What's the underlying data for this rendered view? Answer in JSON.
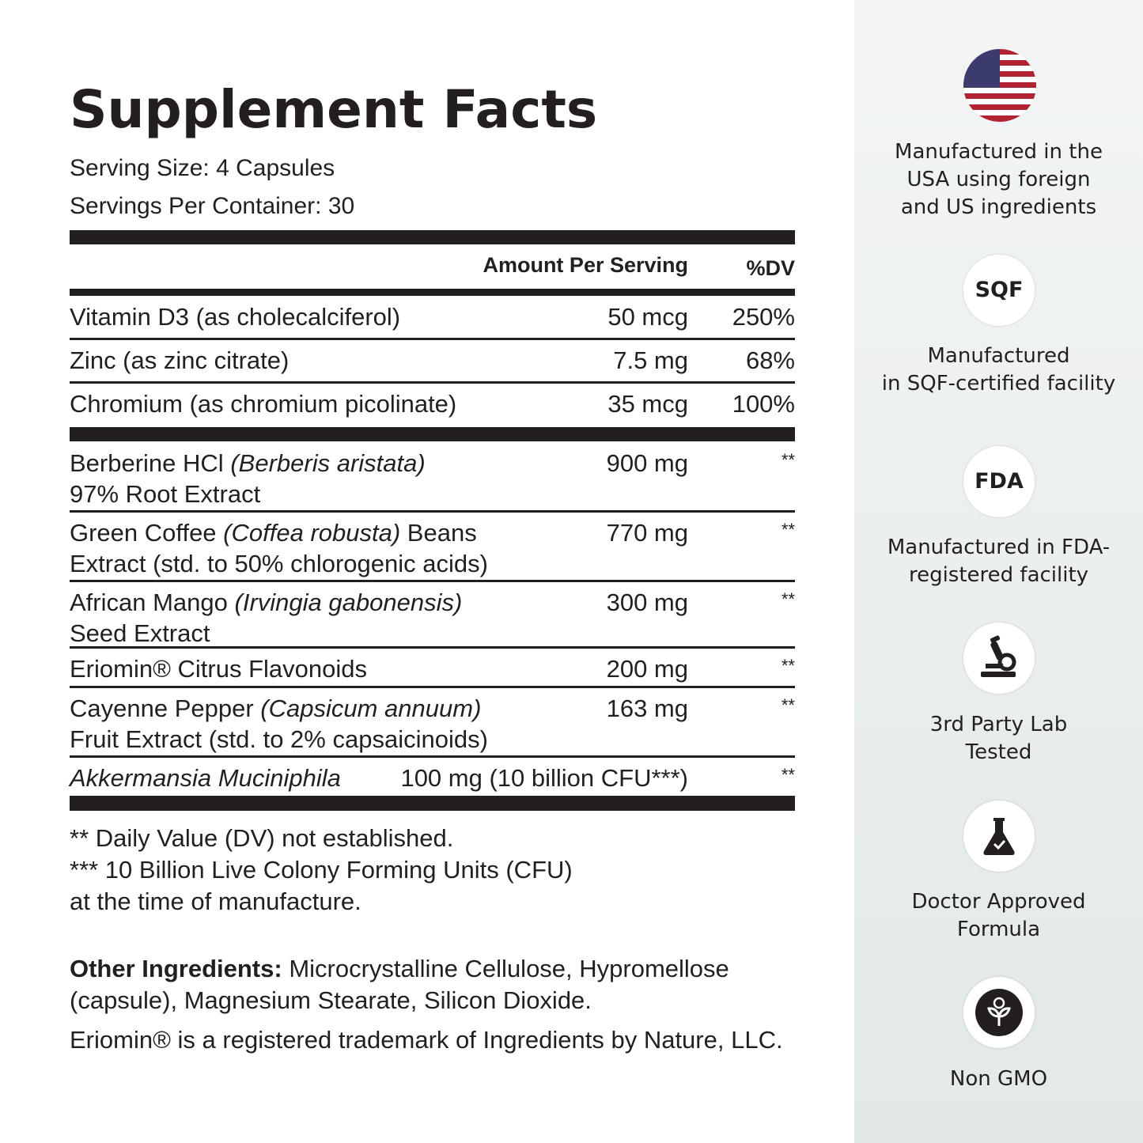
{
  "title": "Supplement Facts",
  "serving_size": "Serving Size: 4 Capsules",
  "servings_per_container": "Servings Per Container: 30",
  "table": {
    "header": {
      "amount": "Amount Per Serving",
      "dv": "%DV"
    },
    "vitamins": [
      {
        "name": "Vitamin D3 (as cholecalciferol)",
        "amount": "50 mcg",
        "dv": "250%"
      },
      {
        "name": "Zinc (as zinc citrate)",
        "amount": "7.5 mg",
        "dv": "68%"
      },
      {
        "name": "Chromium (as chromium picolinate)",
        "amount": "35 mcg",
        "dv": "100%"
      }
    ],
    "blend": [
      {
        "name": [
          [
            {
              "text": "Berberine HCl"
            },
            {
              "text": "(Berberis aristata)",
              "italic": true
            }
          ],
          [
            {
              "text": "97% Root Extract"
            }
          ]
        ],
        "amount": "900 mg",
        "dv": "**"
      },
      {
        "name": [
          [
            {
              "text": "Green Coffee"
            },
            {
              "text": "(Coffea robusta)",
              "italic": true
            },
            {
              "text": "Beans"
            }
          ],
          [
            {
              "text": "Extract (std. to 50% chlorogenic acids)"
            }
          ]
        ],
        "amount": "770 mg",
        "dv": "**"
      },
      {
        "name": [
          [
            {
              "text": "African Mango"
            },
            {
              "text": "(Irvingia gabonensis)",
              "italic": true
            }
          ],
          [
            {
              "text": "Seed Extract"
            }
          ]
        ],
        "amount": "300 mg",
        "dv": "**"
      },
      {
        "name": [
          [
            {
              "text": "Eriomin® Citrus Flavonoids"
            }
          ]
        ],
        "amount": "200 mg",
        "dv": "**"
      },
      {
        "name": [
          [
            {
              "text": "Cayenne Pepper"
            },
            {
              "text": "(Capsicum annuum)",
              "italic": true
            }
          ],
          [
            {
              "text": "Fruit Extract (std. to 2% capsaicinoids)"
            }
          ]
        ],
        "amount": "163 mg",
        "dv": "**"
      },
      {
        "name": [
          [
            {
              "text": "Akkermansia Muciniphila",
              "italic": true
            }
          ]
        ],
        "amount": "100 mg (10 billion CFU***)",
        "dv": "**"
      }
    ]
  },
  "footnotes": [
    "** Daily Value (DV) not established.",
    "*** 10 Billion Live Colony Forming Units (CFU)",
    "at the time of manufacture."
  ],
  "other_ingredients": {
    "label": "Other Ingredients:",
    "text": "Microcrystalline Cellulose, Hypromellose (capsule), Magnesium Stearate, Silicon Dioxide."
  },
  "trademark": "Eriomin® is a registered trademark of Ingredients by Nature, LLC.",
  "badges": [
    {
      "lines": [
        "Manufactured in the",
        "USA using foreign",
        "and US ingredients"
      ]
    },
    {
      "icon_text": "SQF",
      "lines": [
        "Manufactured",
        "in SQF-certified facility"
      ]
    },
    {
      "icon_text": "FDA",
      "lines": [
        "Manufactured in FDA-",
        "registered facility"
      ]
    },
    {
      "lines": [
        "3rd Party Lab",
        "Tested"
      ]
    },
    {
      "lines": [
        "Doctor Approved",
        "Formula"
      ]
    },
    {
      "lines": [
        "Non GMO"
      ]
    }
  ]
}
